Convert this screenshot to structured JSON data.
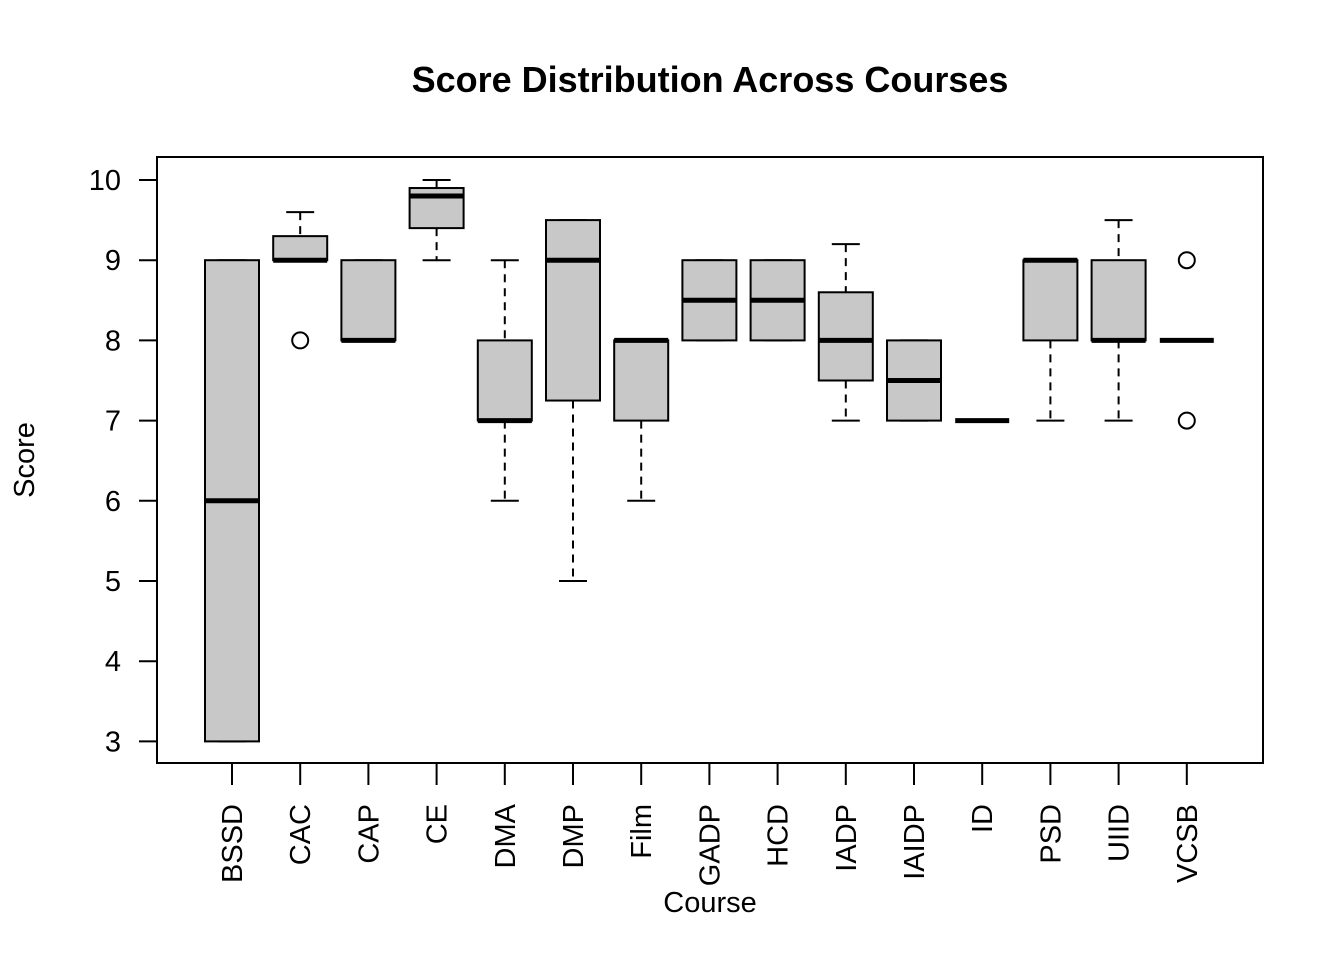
{
  "chart_data": {
    "type": "boxplot",
    "title": "Score Distribution Across Courses",
    "xlabel": "Course",
    "ylabel": "Score",
    "ylim": [
      2.75,
      10.3
    ],
    "yticks": [
      3,
      4,
      5,
      6,
      7,
      8,
      9,
      10
    ],
    "grid": false,
    "legend": "none",
    "box_fill": "#c8c8c8",
    "categories": [
      "BSSD",
      "CAC",
      "CAP",
      "CE",
      "DMA",
      "DMP",
      "Film",
      "GADP",
      "HCD",
      "IADP",
      "IAIDP",
      "ID",
      "PSD",
      "UIID",
      "VCSB"
    ],
    "boxes": [
      {
        "category": "BSSD",
        "whisker_low": 3,
        "q1": 3,
        "median": 6,
        "q3": 9,
        "whisker_high": 9,
        "outliers": []
      },
      {
        "category": "CAC",
        "whisker_low": 9,
        "q1": 9,
        "median": 9,
        "q3": 9.3,
        "whisker_high": 9.6,
        "outliers": [
          8
        ]
      },
      {
        "category": "CAP",
        "whisker_low": 8,
        "q1": 8,
        "median": 8,
        "q3": 9,
        "whisker_high": 9,
        "outliers": []
      },
      {
        "category": "CE",
        "whisker_low": 9,
        "q1": 9.4,
        "median": 9.8,
        "q3": 9.9,
        "whisker_high": 10,
        "outliers": []
      },
      {
        "category": "DMA",
        "whisker_low": 6,
        "q1": 7,
        "median": 7,
        "q3": 8,
        "whisker_high": 9,
        "outliers": []
      },
      {
        "category": "DMP",
        "whisker_low": 5,
        "q1": 7.25,
        "median": 9,
        "q3": 9.5,
        "whisker_high": 9.5,
        "outliers": []
      },
      {
        "category": "Film",
        "whisker_low": 6,
        "q1": 7,
        "median": 8,
        "q3": 8,
        "whisker_high": 8,
        "outliers": []
      },
      {
        "category": "GADP",
        "whisker_low": 8,
        "q1": 8,
        "median": 8.5,
        "q3": 9,
        "whisker_high": 9,
        "outliers": []
      },
      {
        "category": "HCD",
        "whisker_low": 8,
        "q1": 8,
        "median": 8.5,
        "q3": 9,
        "whisker_high": 9,
        "outliers": []
      },
      {
        "category": "IADP",
        "whisker_low": 7,
        "q1": 7.5,
        "median": 8,
        "q3": 8.6,
        "whisker_high": 9.2,
        "outliers": []
      },
      {
        "category": "IAIDP",
        "whisker_low": 7,
        "q1": 7,
        "median": 7.5,
        "q3": 8,
        "whisker_high": 8,
        "outliers": []
      },
      {
        "category": "ID",
        "whisker_low": 7,
        "q1": 7,
        "median": 7,
        "q3": 7,
        "whisker_high": 7,
        "outliers": []
      },
      {
        "category": "PSD",
        "whisker_low": 7,
        "q1": 8,
        "median": 9,
        "q3": 9,
        "whisker_high": 9,
        "outliers": []
      },
      {
        "category": "UIID",
        "whisker_low": 7,
        "q1": 8,
        "median": 8,
        "q3": 9,
        "whisker_high": 9.5,
        "outliers": []
      },
      {
        "category": "VCSB",
        "whisker_low": 8,
        "q1": 8,
        "median": 8,
        "q3": 8,
        "whisker_high": 8,
        "outliers": [
          7,
          9
        ]
      }
    ]
  }
}
